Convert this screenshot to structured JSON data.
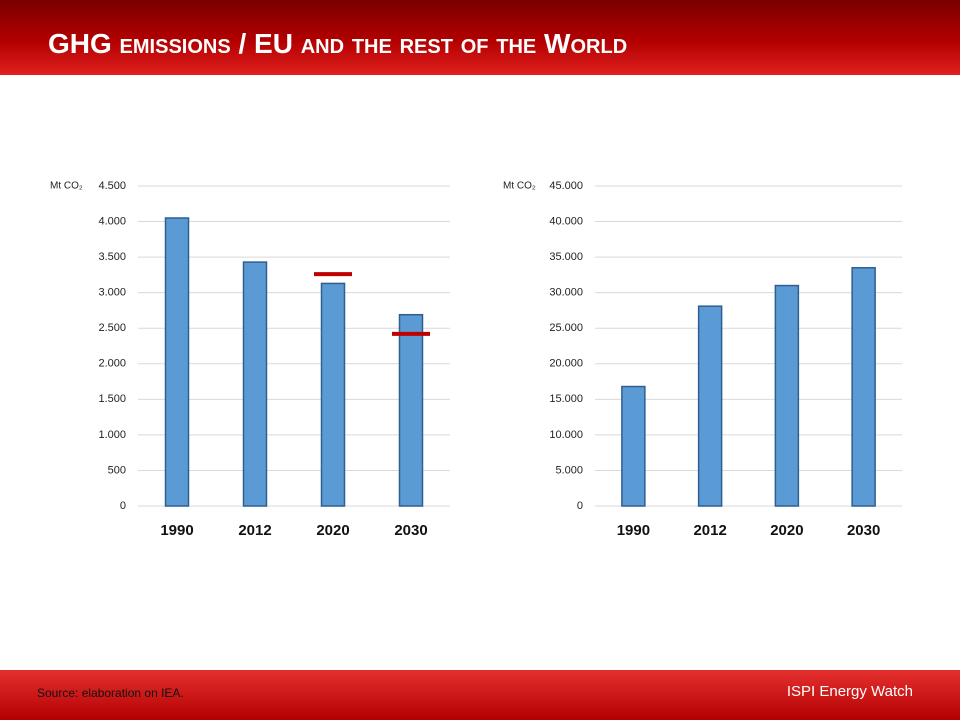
{
  "header": {
    "title": "GHG emissions / EU and the rest of the World"
  },
  "chart_data": [
    {
      "type": "bar",
      "y_label": "Mt CO₂",
      "categories": [
        "1990",
        "2012",
        "2020",
        "2030"
      ],
      "values": [
        4050,
        3430,
        3130,
        2690
      ],
      "color": "#5b9bd5",
      "target_values": [
        null,
        null,
        3260,
        2420
      ],
      "target_color": "#c00000",
      "ylim": [
        0,
        4500
      ],
      "yticks": [
        0,
        500,
        {
          "value": 1000,
          "label": "1.000"
        },
        {
          "value": 1500,
          "label": "1.500"
        },
        {
          "value": 2000,
          "label": "2.000"
        },
        {
          "value": 2500,
          "label": "2.500"
        },
        {
          "value": 3000,
          "label": "3.000"
        },
        {
          "value": 3500,
          "label": "3.500"
        },
        {
          "value": 4000,
          "label": "4.000"
        },
        {
          "value": 4500,
          "label": "4.500"
        }
      ],
      "grid": true
    },
    {
      "type": "bar",
      "y_label": "Mt CO₂",
      "categories": [
        "1990",
        "2012",
        "2020",
        "2030"
      ],
      "values": [
        16800,
        28100,
        31000,
        33500
      ],
      "color": "#5b9bd5",
      "ylim": [
        0,
        45000
      ],
      "yticks": [
        0,
        {
          "value": 5000,
          "label": "5.000"
        },
        {
          "value": 10000,
          "label": "10.000"
        },
        {
          "value": 15000,
          "label": "15.000"
        },
        {
          "value": 20000,
          "label": "20.000"
        },
        {
          "value": 25000,
          "label": "25.000"
        },
        {
          "value": 30000,
          "label": "30.000"
        },
        {
          "value": 35000,
          "label": "35.000"
        },
        {
          "value": 40000,
          "label": "40.000"
        },
        {
          "value": 45000,
          "label": "45.000"
        }
      ],
      "grid": true
    }
  ],
  "footer": {
    "source": "Source: elaboration on IEA.",
    "brand": "ISPI Energy Watch"
  }
}
